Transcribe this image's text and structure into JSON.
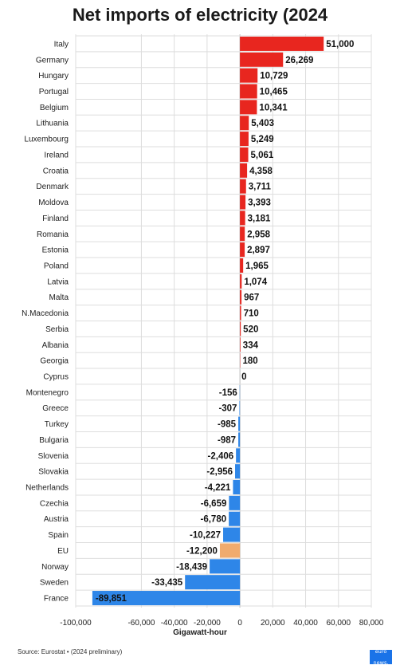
{
  "chart_data": {
    "type": "bar",
    "orientation": "horizontal",
    "title": "Net imports of electricity (2024",
    "xlabel": "Gigawatt-hour",
    "ylabel": "",
    "xlim": [
      -100000,
      80000
    ],
    "x_ticks": [
      -100000,
      -60000,
      -40000,
      -20000,
      0,
      20000,
      40000,
      60000,
      80000
    ],
    "x_tick_labels": [
      "-100,000",
      "-60,000",
      "-40,000",
      "-20,000",
      "0",
      "20,000",
      "40,000",
      "60,000",
      "80,000"
    ],
    "grid": true,
    "categories": [
      "Italy",
      "Germany",
      "Hungary",
      "Portugal",
      "Belgium",
      "Lithuania",
      "Luxembourg",
      "Ireland",
      "Croatia",
      "Denmark",
      "Moldova",
      "Finland",
      "Romania",
      "Estonia",
      "Poland",
      "Latvia",
      "Malta",
      "N.Macedonia",
      "Serbia",
      "Albania",
      "Georgia",
      "Cyprus",
      "Montenegro",
      "Greece",
      "Turkey",
      "Bulgaria",
      "Slovenia",
      "Slovakia",
      "Netherlands",
      "Czechia",
      "Austria",
      "Spain",
      "EU",
      "Norway",
      "Sweden",
      "France"
    ],
    "values": [
      51000,
      26269,
      10729,
      10465,
      10341,
      5403,
      5249,
      5061,
      4358,
      3711,
      3393,
      3181,
      2958,
      2897,
      1965,
      1074,
      967,
      710,
      520,
      334,
      180,
      0,
      -156,
      -307,
      -985,
      -987,
      -2406,
      -2956,
      -4221,
      -6659,
      -6780,
      -10227,
      -12200,
      -18439,
      -33435,
      -89851
    ],
    "value_labels": [
      "51,000",
      "26,269",
      "10,729",
      "10,465",
      "10,341",
      "5,403",
      "5,249",
      "5,061",
      "4,358",
      "3,711",
      "3,393",
      "3,181",
      "2,958",
      "2,897",
      "1,965",
      "1,074",
      "967",
      "710",
      "520",
      "334",
      "180",
      "0",
      "-156",
      "-307",
      "-985",
      "-987",
      "-2,406",
      "-2,956",
      "-4,221",
      "-6,659",
      "-6,780",
      "-10,227",
      "-12,200",
      "-18,439",
      "-33,435",
      "-89,851"
    ],
    "colors": {
      "positive": "#e8261f",
      "negative": "#2e86e8",
      "highlight": "#f0ab6e",
      "highlight_category": "EU"
    }
  },
  "source": "Source: Eurostat • (2024 preliminary)",
  "logo_text": "euro news."
}
